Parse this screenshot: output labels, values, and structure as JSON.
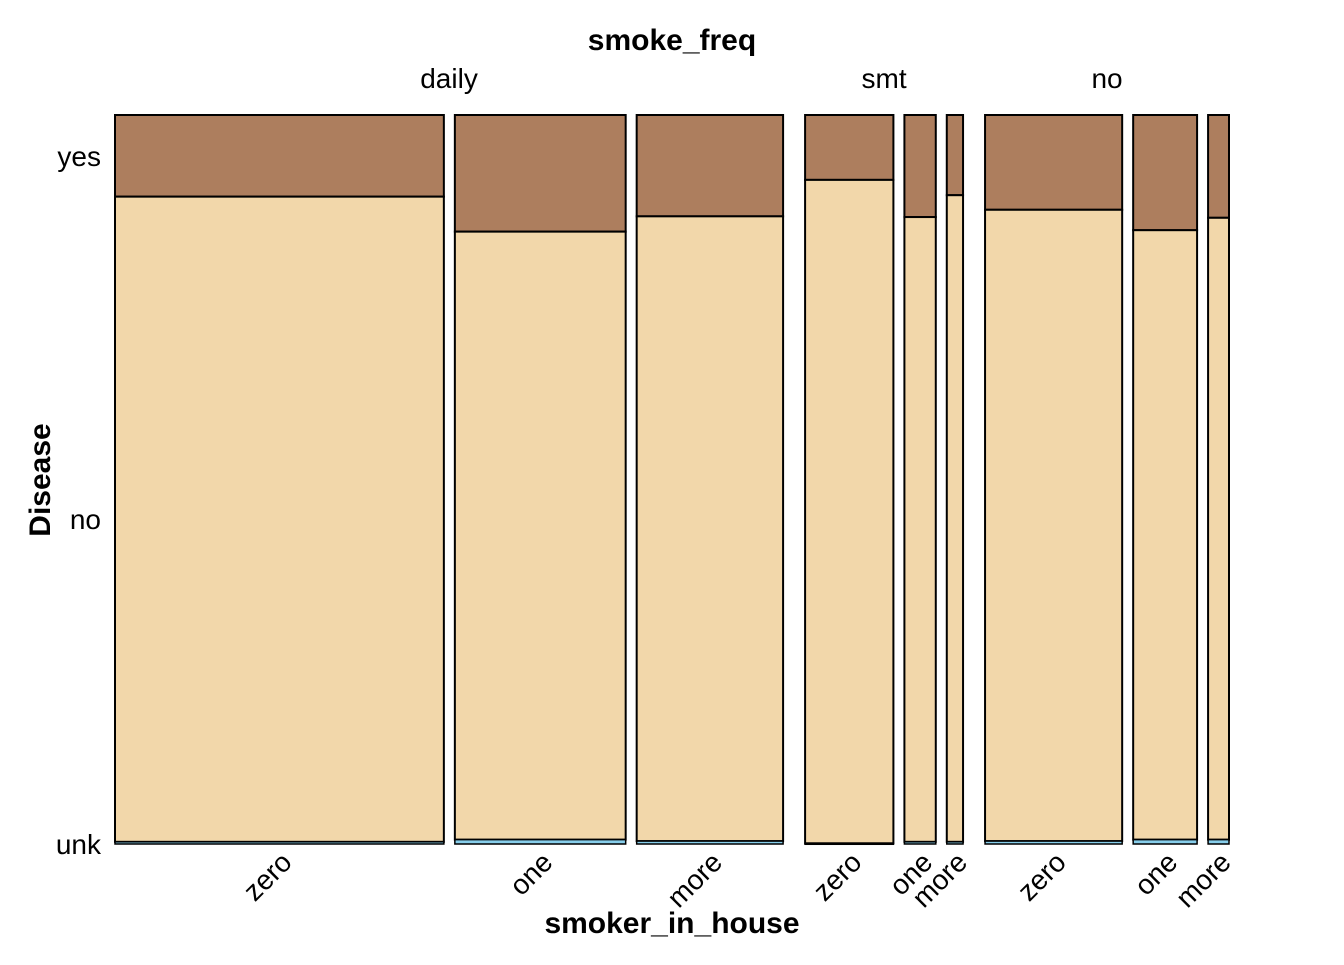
{
  "chart_data": {
    "type": "mosaic",
    "top_title": "smoke_freq",
    "x_title": "smoker_in_house",
    "y_title": "Disease",
    "y_levels": [
      "unk",
      "no",
      "yes"
    ],
    "groups": [
      {
        "label": "daily",
        "cells": [
          {
            "label": "zero",
            "width": 0.283,
            "unk": 0.003,
            "no": 0.885,
            "yes": 0.112
          },
          {
            "label": "one",
            "width": 0.147,
            "unk": 0.006,
            "no": 0.834,
            "yes": 0.16
          },
          {
            "label": "more",
            "width": 0.126,
            "unk": 0.004,
            "no": 0.857,
            "yes": 0.139
          }
        ]
      },
      {
        "label": "smt",
        "cells": [
          {
            "label": "zero",
            "width": 0.076,
            "unk": 0.001,
            "no": 0.91,
            "yes": 0.089
          },
          {
            "label": "one",
            "width": 0.027,
            "unk": 0.003,
            "no": 0.857,
            "yes": 0.14
          },
          {
            "label": "more",
            "width": 0.014,
            "unk": 0.003,
            "no": 0.887,
            "yes": 0.11
          }
        ]
      },
      {
        "label": "no",
        "cells": [
          {
            "label": "zero",
            "width": 0.118,
            "unk": 0.004,
            "no": 0.866,
            "yes": 0.13
          },
          {
            "label": "one",
            "width": 0.055,
            "unk": 0.006,
            "no": 0.836,
            "yes": 0.158
          },
          {
            "label": "more",
            "width": 0.018,
            "unk": 0.006,
            "no": 0.853,
            "yes": 0.141
          }
        ]
      }
    ],
    "colors": {
      "unk": "#87CEEB",
      "no": "#F2D7AA",
      "yes": "#AD7E5E",
      "stroke": "#000000"
    }
  }
}
